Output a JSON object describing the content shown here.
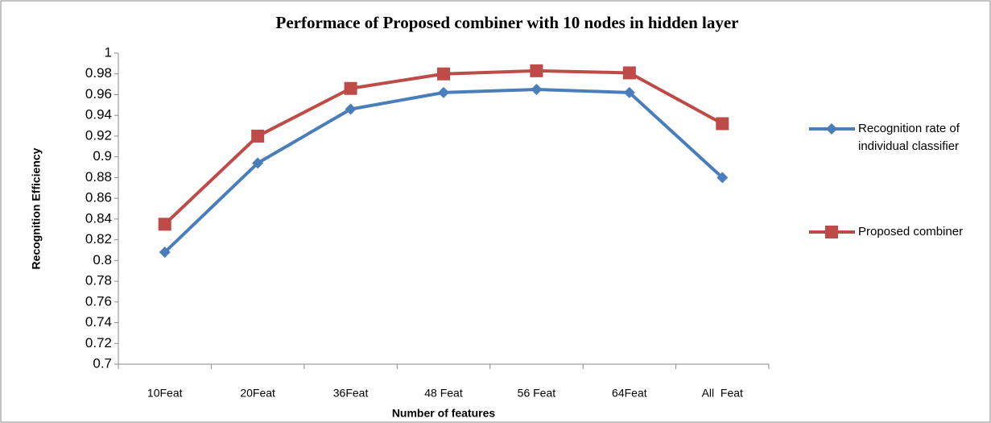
{
  "chart_data": {
    "type": "line",
    "title": "Performace of Proposed combiner with 10 nodes in hidden layer",
    "x_label": "Number of features",
    "y_label": "Recognition Efficiency",
    "categories": [
      "10Feat",
      "20Feat",
      "36Feat",
      "48 Feat",
      "56 Feat",
      "64Feat",
      "All  Feat"
    ],
    "series": [
      {
        "name": "Recognition rate of individual classifier",
        "color": "#4a7ebb",
        "marker": "diamond",
        "values": [
          0.808,
          0.894,
          0.946,
          0.962,
          0.965,
          0.962,
          0.88
        ]
      },
      {
        "name": "Proposed combiner",
        "color": "#be4b48",
        "marker": "square",
        "values": [
          0.835,
          0.92,
          0.966,
          0.98,
          0.983,
          0.981,
          0.932
        ]
      }
    ],
    "ylim": [
      0.7,
      1
    ],
    "yticks": [
      0.7,
      0.72,
      0.74,
      0.76,
      0.78,
      0.8,
      0.82,
      0.84,
      0.86,
      0.88,
      0.9,
      0.92,
      0.94,
      0.96,
      0.98,
      1
    ],
    "grid": false,
    "legend": "right"
  }
}
